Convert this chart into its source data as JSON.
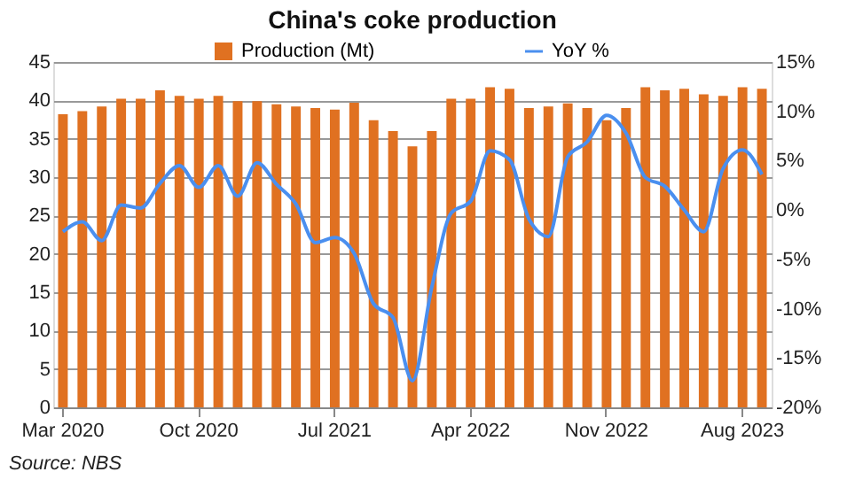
{
  "chart_data": {
    "type": "bar",
    "title": "China's coke production",
    "categories": [
      "Mar 2020",
      null,
      null,
      null,
      null,
      null,
      null,
      "Oct 2020",
      null,
      null,
      null,
      null,
      null,
      null,
      "Jul 2021",
      null,
      null,
      null,
      null,
      null,
      null,
      "Apr 2022",
      null,
      null,
      null,
      null,
      null,
      null,
      "Nov 2022",
      null,
      null,
      null,
      null,
      null,
      null,
      "Aug 2023",
      null
    ],
    "series": [
      {
        "name": "Production (Mt)",
        "color": "#e07121",
        "values": [
          38.2,
          38.6,
          39.2,
          40.2,
          40.2,
          41.3,
          40.6,
          40.2,
          40.6,
          39.9,
          39.9,
          39.5,
          39.2,
          39.0,
          38.8,
          39.7,
          37.4,
          36.0,
          34.0,
          36.0,
          40.2,
          40.2,
          41.7,
          41.5,
          39.0,
          39.2,
          39.6,
          39.0,
          37.4,
          39.0,
          41.7,
          41.3,
          41.5,
          40.8,
          40.6,
          41.7,
          41.5
        ]
      },
      {
        "name": "YoY %",
        "type": "line",
        "axis": "y2",
        "color": "#4a8fef",
        "values": [
          -2.2,
          -1.2,
          -3.1,
          0.5,
          0.2,
          2.7,
          4.5,
          2.3,
          4.5,
          1.4,
          4.8,
          2.6,
          0.6,
          -3.3,
          -2.8,
          -4.4,
          -9.5,
          -10.9,
          -17.3,
          -7.8,
          -0.3,
          0.9,
          6.0,
          5.1,
          -0.9,
          -2.7,
          5.4,
          6.9,
          9.6,
          7.8,
          3.3,
          2.4,
          0.0,
          -2.2,
          4.2,
          6.1,
          3.6
        ]
      }
    ],
    "ylim": [
      0,
      45
    ],
    "yticks": [
      0,
      5,
      10,
      15,
      20,
      25,
      30,
      35,
      40,
      45
    ],
    "y2lim": [
      -20,
      15
    ],
    "y2ticks": [
      {
        "value": -20,
        "label": "-20%"
      },
      {
        "value": -15,
        "label": "-15%"
      },
      {
        "value": -10,
        "label": "-10%"
      },
      {
        "value": -5,
        "label": "-5%"
      },
      {
        "value": 0,
        "label": "0%"
      },
      {
        "value": 5,
        "label": "5%"
      },
      {
        "value": 10,
        "label": "10%"
      },
      {
        "value": 15,
        "label": "15%"
      }
    ],
    "grid": "y",
    "legend": "top",
    "annotations": [
      "Source: NBS"
    ]
  }
}
